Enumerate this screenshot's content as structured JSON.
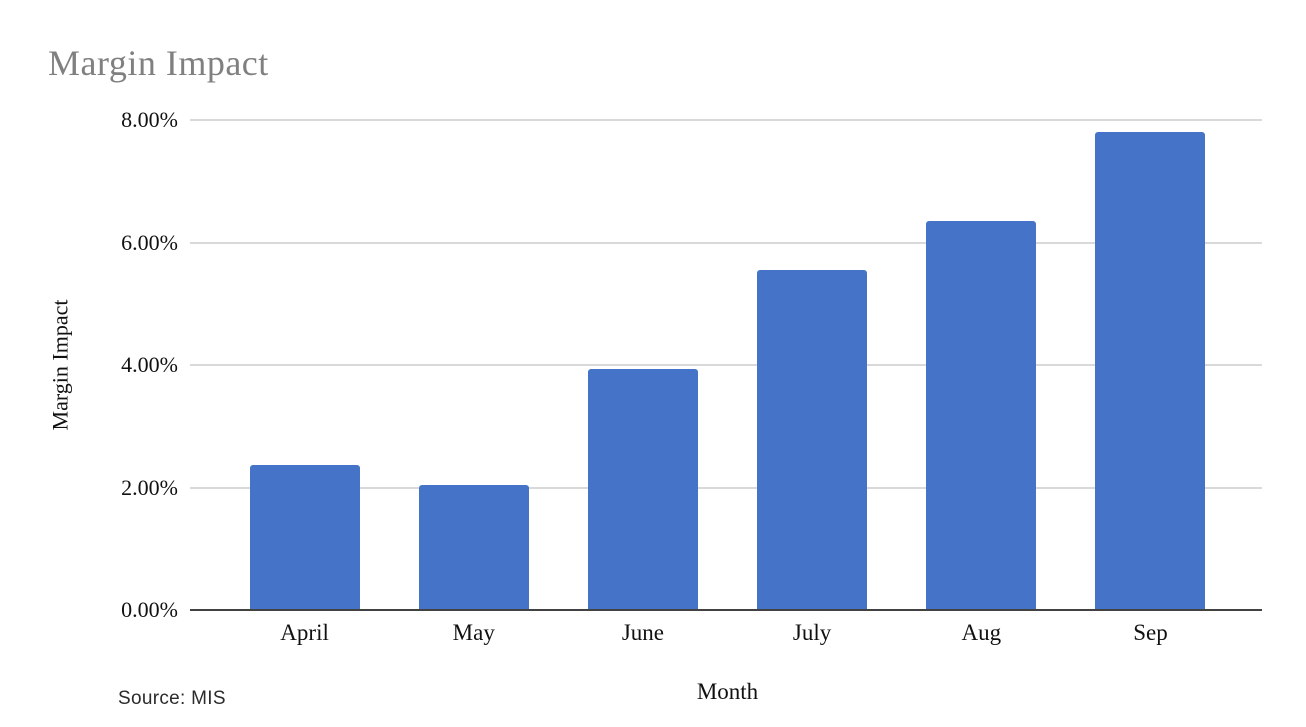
{
  "title": "Margin Impact",
  "source_note": "Source: MIS",
  "colors": {
    "bar": "#4573c7",
    "gridline": "#d9d9d9",
    "axis_line": "#424242",
    "title_text": "#808080",
    "label_text": "#111111"
  },
  "chart_data": {
    "type": "bar",
    "title": "Margin Impact",
    "xlabel": "Month",
    "ylabel": "Margin Impact",
    "categories": [
      "April",
      "May",
      "June",
      "July",
      "Aug",
      "Sep"
    ],
    "values": [
      2.36,
      2.04,
      3.93,
      5.55,
      6.35,
      7.81
    ],
    "unit": "%",
    "ylim": [
      0,
      8
    ],
    "y_tick_step": 2,
    "y_tick_labels": [
      "8.00%",
      "6.00%",
      "4.00%",
      "2.00%",
      "0.00%"
    ],
    "grid": "horizontal",
    "legend": "none",
    "bar_color": "#4573c7"
  }
}
